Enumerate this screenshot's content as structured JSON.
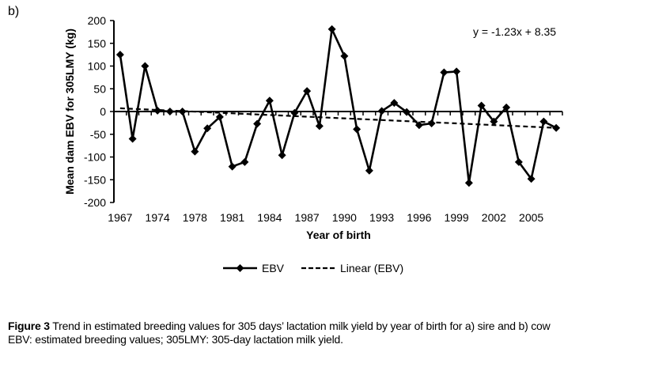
{
  "panel_label": "b)",
  "caption": {
    "figure_label": "Figure 3",
    "text": " Trend in estimated breeding values for 305 days’ lactation milk yield by year of birth for a) sire and b) cow",
    "note": "EBV: estimated breeding values; 305LMY: 305-day lactation milk yield."
  },
  "chart_data": {
    "type": "line",
    "title": "",
    "xlabel": "Year of birth",
    "ylabel": "Mean dam EBV for 305LMY  (kg)",
    "ylim": [
      -200,
      200
    ],
    "yticks": [
      200,
      150,
      100,
      50,
      0,
      -50,
      -100,
      -150,
      -200
    ],
    "grid": false,
    "legend_position": "bottom",
    "categories": [
      "1967",
      "",
      "",
      "1974",
      "",
      "",
      "1978",
      "",
      "",
      "1981",
      "",
      "",
      "1984",
      "",
      "",
      "1987",
      "",
      "",
      "1990",
      "",
      "",
      "1993",
      "",
      "",
      "1996",
      "",
      "",
      "1999",
      "",
      "",
      "2002",
      "",
      "",
      "2005",
      "",
      ""
    ],
    "series": [
      {
        "name": "EBV",
        "style": "solid-diamond",
        "values": [
          125,
          -60,
          100,
          2,
          0,
          0,
          -88,
          -37,
          -12,
          -121,
          -111,
          -27,
          24,
          -96,
          -3,
          45,
          -32,
          181,
          122,
          -39,
          -130,
          1,
          19,
          -1,
          -30,
          -26,
          86,
          88,
          -157,
          13,
          -22,
          9,
          -111,
          -148,
          -22,
          -36
        ]
      },
      {
        "name": "Linear (EBV)",
        "style": "dashed",
        "trend": {
          "slope": -1.23,
          "intercept": 8.35
        }
      }
    ],
    "annotations": [
      {
        "text": "y = -1.23x + 8.35",
        "position": "top-right"
      }
    ]
  }
}
